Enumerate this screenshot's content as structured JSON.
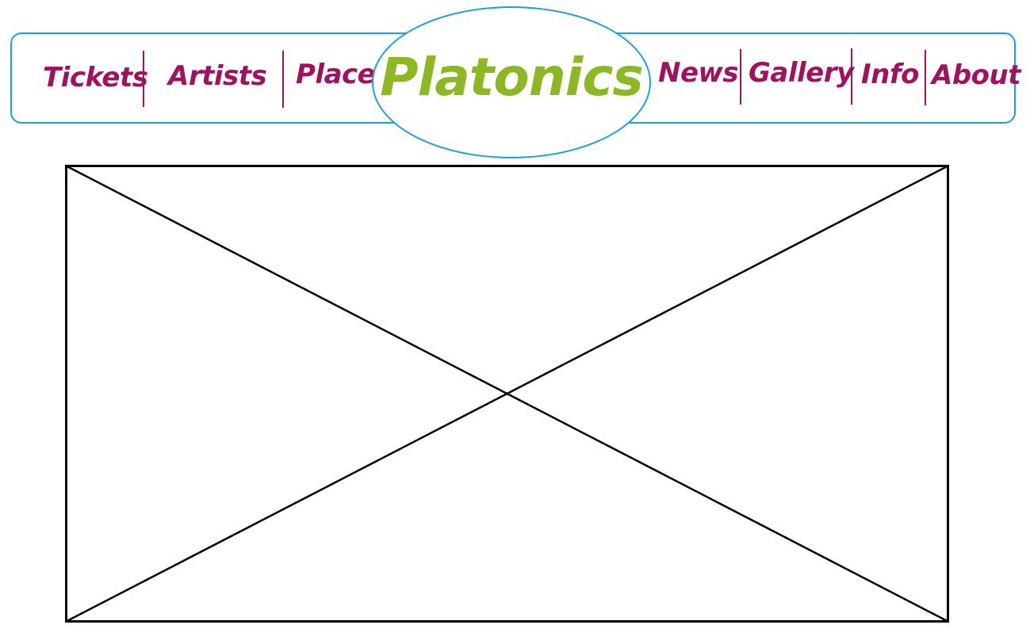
{
  "nav": {
    "left": [
      {
        "label": "Tickets"
      },
      {
        "label": "Artists"
      },
      {
        "label": "Place"
      }
    ],
    "right": [
      {
        "label": "News"
      },
      {
        "label": "Gallery"
      },
      {
        "label": "Info"
      },
      {
        "label": "About"
      }
    ]
  },
  "logo": {
    "text": "Platonics"
  },
  "colors": {
    "nav_text": "#a0125f",
    "logo_text": "#8cb923",
    "border": "#1aa0dc",
    "placeholder_stroke": "#000000"
  }
}
